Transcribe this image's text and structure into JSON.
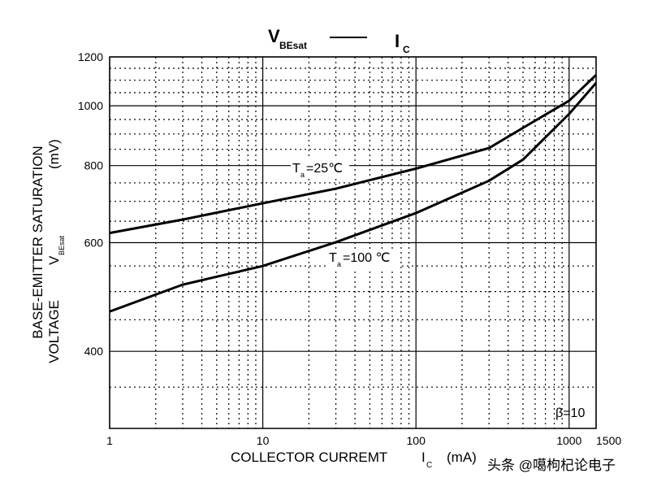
{
  "chart_data": {
    "type": "line",
    "title": {
      "main": "V",
      "sub": "BEsat",
      "main2": "I",
      "sub2": "C"
    },
    "x_label": {
      "text": "COLLECTOR CURREMT",
      "symbol": "I",
      "sub": "C",
      "unit": "(mA)"
    },
    "y_label": {
      "line1": "BASE-EMITTER SATURATION",
      "line2": "VOLTAGE",
      "symbol": "V",
      "sub": "BEsat",
      "unit": "(mV)"
    },
    "annotation": "β=10",
    "watermark": "头条 @噶枸杞论电子",
    "x_log": true,
    "y_log": true,
    "grid": true,
    "xlim": [
      1,
      1500
    ],
    "xticks": [
      1,
      10,
      100,
      1000,
      1500
    ],
    "ylim": [
      300,
      1200
    ],
    "yticks": [
      400,
      600,
      800,
      1000,
      1200
    ],
    "x_minor_grid": [
      2,
      3,
      4,
      5,
      6,
      7,
      8,
      9,
      20,
      30,
      40,
      50,
      60,
      70,
      80,
      90,
      200,
      300,
      400,
      500,
      600,
      700,
      800,
      900
    ],
    "y_minor_grid": [
      350,
      450,
      500,
      550,
      650,
      700,
      750,
      850,
      900,
      950,
      1050,
      1100,
      1150
    ],
    "series": [
      {
        "label": {
          "main": "T",
          "sub": "a",
          "rest": "=25℃"
        },
        "color": "#000000",
        "x": [
          1,
          3,
          10,
          30,
          100,
          300,
          500,
          1000,
          1500
        ],
        "values": [
          622,
          654,
          695,
          734,
          791,
          854,
          921,
          1019,
          1122
        ]
      },
      {
        "label": {
          "main": "T",
          "sub": "a",
          "rest": "=100 ℃"
        },
        "color": "#000000",
        "x": [
          1,
          3,
          10,
          30,
          100,
          300,
          500,
          1000,
          1500
        ],
        "values": [
          464,
          513,
          550,
          601,
          670,
          756,
          818,
          970,
          1089
        ]
      }
    ]
  }
}
